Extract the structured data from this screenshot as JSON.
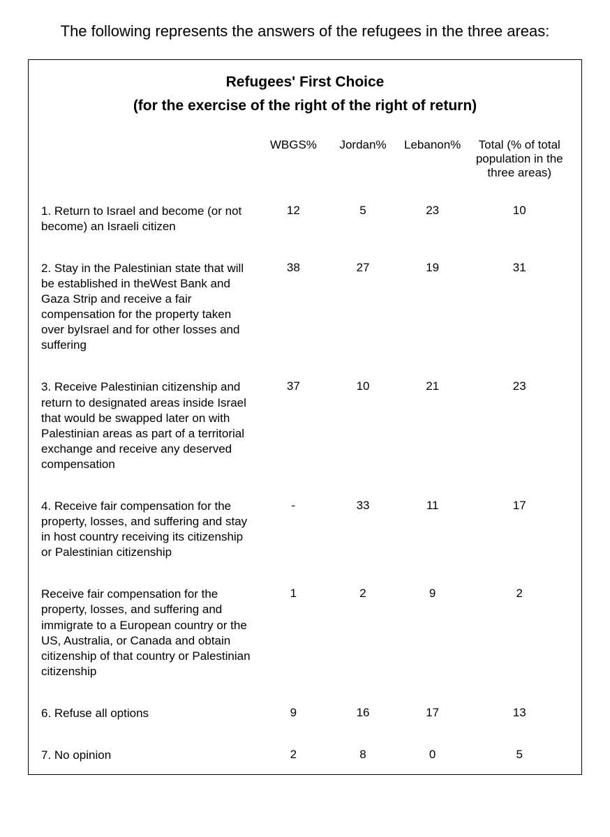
{
  "intro_text": "The following represents the answers of the refugees in the three areas:",
  "table": {
    "title": "Refugees' First Choice",
    "subtitle": "(for the exercise of the right of the right of return)",
    "columns": {
      "wbgs": "WBGS%",
      "jordan": "Jordan%",
      "lebanon": "Lebanon%",
      "total": "Total (% of total population in the three areas)"
    },
    "rows": [
      {
        "label": "1.  Return to Israel and become (or not become) an Israeli citizen",
        "wbgs": "12",
        "jordan": "5",
        "lebanon": "23",
        "total": "10"
      },
      {
        "label": "2.  Stay in the Palestinian state that will be established in theWest Bank and Gaza Strip and receive a fair compensation for the property taken over byIsrael and for other losses and suffering",
        "wbgs": "38",
        "jordan": "27",
        "lebanon": "19",
        "total": "31"
      },
      {
        "label": "3.  Receive Palestinian citizenship and return to designated areas inside Israel that would be swapped later on with Palestinian areas as part of a territorial exchange and receive any deserved compensation",
        "wbgs": "37",
        "jordan": "10",
        "lebanon": "21",
        "total": "23"
      },
      {
        "label": "4.  Receive fair compensation for the property, losses, and suffering and stay in host country receiving its citizenship or Palestinian citizenship",
        "wbgs": "-",
        "jordan": "33",
        "lebanon": "11",
        "total": "17"
      },
      {
        "label": "Receive fair compensation for the property, losses, and suffering and immigrate to a European country or the US, Australia, or Canada and obtain citizenship of that country or Palestinian citizenship",
        "wbgs": "1",
        "jordan": "2",
        "lebanon": "9",
        "total": "2"
      },
      {
        "label": "6.  Refuse all options",
        "wbgs": "9",
        "jordan": "16",
        "lebanon": "17",
        "total": "13"
      },
      {
        "label": "7.  No opinion",
        "wbgs": "2",
        "jordan": "8",
        "lebanon": "0",
        "total": "5"
      }
    ]
  },
  "styling": {
    "background_color": "#ffffff",
    "text_color": "#000000",
    "border_color": "#000000",
    "intro_fontsize": 22,
    "title_fontsize": 21,
    "body_fontsize": 17,
    "font_family": "Arial"
  }
}
